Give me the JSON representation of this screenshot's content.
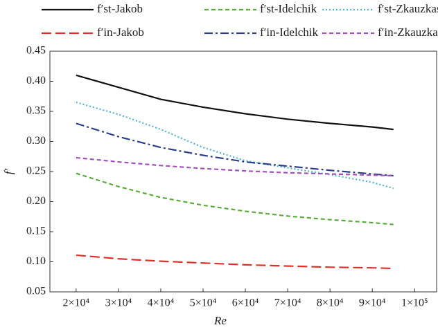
{
  "chart_data": {
    "type": "line",
    "x_label": "Re",
    "y_label": "f′",
    "xlim": [
      13800,
      105200
    ],
    "xticks": [
      {
        "value": 20000,
        "label": "2×10⁴"
      },
      {
        "value": 30000,
        "label": "3×10⁴"
      },
      {
        "value": 40000,
        "label": "4×10⁴"
      },
      {
        "value": 50000,
        "label": "5×10⁴"
      },
      {
        "value": 60000,
        "label": "6×10⁴"
      },
      {
        "value": 70000,
        "label": "7×10⁴"
      },
      {
        "value": 80000,
        "label": "8×10⁴"
      },
      {
        "value": 90000,
        "label": "9×10⁴"
      },
      {
        "value": 100000,
        "label": "1×10⁵"
      }
    ],
    "ylim": [
      0.05,
      0.45
    ],
    "yticks": [
      0.05,
      {
        "value": 0.1,
        "label": "0.10"
      },
      0.15,
      {
        "value": 0.2,
        "label": "0.20"
      },
      0.25,
      {
        "value": 0.3,
        "label": "0.30"
      },
      0.35,
      {
        "value": 0.4,
        "label": "0.40"
      },
      0.45
    ],
    "x": [
      20000,
      30000,
      40000,
      50000,
      60000,
      70000,
      80000,
      90000,
      95000
    ],
    "series": [
      {
        "name": "f′st-Jakob",
        "color": "#111111",
        "dash": "solid",
        "values": [
          0.41,
          0.39,
          0.37,
          0.357,
          0.346,
          0.337,
          0.33,
          0.324,
          0.32
        ]
      },
      {
        "name": "f′st-Idelchik",
        "color": "#5aac3a",
        "dash": "dashed",
        "values": [
          0.247,
          0.225,
          0.207,
          0.194,
          0.184,
          0.176,
          0.17,
          0.165,
          0.162
        ]
      },
      {
        "name": "f′st-Zkauzkas",
        "color": "#4bb3d8",
        "dash": "dotted",
        "values": [
          0.365,
          0.345,
          0.32,
          0.29,
          0.268,
          0.256,
          0.245,
          0.232,
          0.222
        ]
      },
      {
        "name": "f′in-Jakob",
        "color": "#e0302a",
        "dash": "long-dashed",
        "values": [
          0.111,
          0.105,
          0.101,
          0.098,
          0.095,
          0.093,
          0.091,
          0.09,
          0.089
        ]
      },
      {
        "name": "f′in-Idelchik",
        "color": "#2c3e8a",
        "dash": "dash-dot",
        "values": [
          0.33,
          0.308,
          0.29,
          0.277,
          0.266,
          0.259,
          0.252,
          0.246,
          0.243
        ]
      },
      {
        "name": "f′in-Zkauzkas",
        "color": "#a44fc0",
        "dash": "dashed",
        "values": [
          0.273,
          0.266,
          0.26,
          0.255,
          0.251,
          0.248,
          0.246,
          0.244,
          0.243
        ]
      }
    ]
  }
}
